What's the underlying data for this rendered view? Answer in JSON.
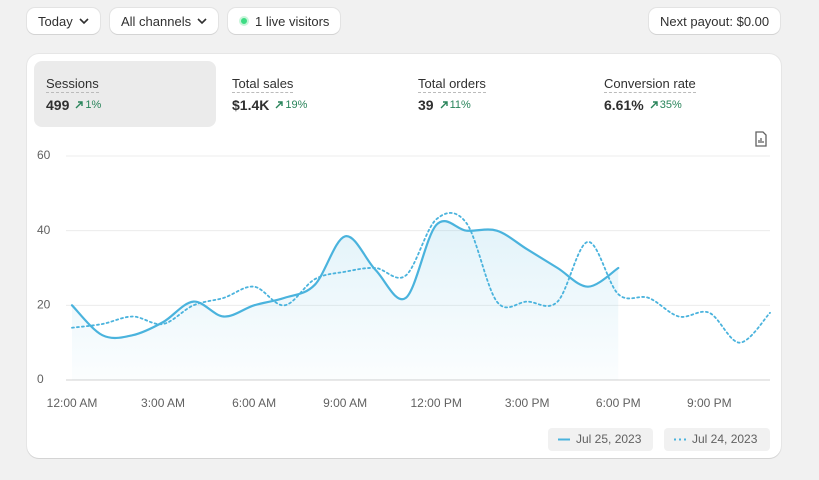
{
  "toolbar": {
    "date_filter": "Today",
    "channel_filter": "All channels",
    "live_visitors": "1 live visitors",
    "payout": "Next payout: $0.00"
  },
  "metrics": [
    {
      "label": "Sessions",
      "value": "499",
      "change": "1%"
    },
    {
      "label": "Total sales",
      "value": "$1.4K",
      "change": "19%"
    },
    {
      "label": "Total orders",
      "value": "39",
      "change": "11%"
    },
    {
      "label": "Conversion rate",
      "value": "6.61%",
      "change": "35%"
    }
  ],
  "chart_data": {
    "type": "line",
    "xlim": [
      0,
      23
    ],
    "ylim": [
      0,
      60
    ],
    "yticks": [
      0,
      20,
      40,
      60
    ],
    "grid": true,
    "xticks": [
      {
        "value": 0,
        "label": "12:00 AM"
      },
      {
        "value": 3,
        "label": "3:00 AM"
      },
      {
        "value": 6,
        "label": "6:00 AM"
      },
      {
        "value": 9,
        "label": "9:00 AM"
      },
      {
        "value": 12,
        "label": "12:00 PM"
      },
      {
        "value": 15,
        "label": "3:00 PM"
      },
      {
        "value": 18,
        "label": "6:00 PM"
      },
      {
        "value": 21,
        "label": "9:00 PM"
      }
    ],
    "x": [
      0,
      1,
      2,
      3,
      4,
      5,
      6,
      7,
      8,
      9,
      10,
      11,
      12,
      13,
      14,
      15,
      16,
      17,
      18,
      19,
      20,
      21,
      22,
      23
    ],
    "series": [
      {
        "name": "Jul 25, 2023",
        "color": "#4ab3dd",
        "style": "solid",
        "area": true,
        "values": [
          20,
          12,
          12,
          15.5,
          21,
          17,
          20,
          22,
          25.5,
          38.5,
          29.5,
          22,
          41.5,
          40,
          40,
          35,
          30,
          25,
          30,
          null,
          null,
          null,
          null,
          null
        ]
      },
      {
        "name": "Jul 24, 2023",
        "color": "#4ab3dd",
        "style": "dotted",
        "area": false,
        "values": [
          14,
          15,
          17,
          15,
          20,
          22,
          25,
          20,
          27,
          29,
          30,
          28,
          43,
          42,
          21,
          21,
          21,
          37,
          23,
          22,
          17,
          18,
          10,
          18
        ]
      }
    ]
  }
}
